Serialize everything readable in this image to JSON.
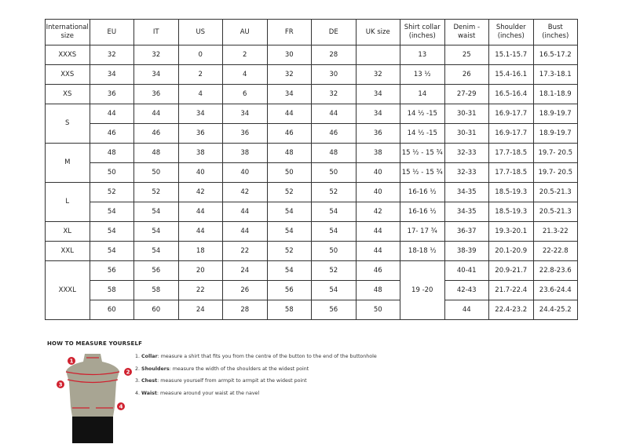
{
  "table": {
    "headers": [
      "International size",
      "EU",
      "IT",
      "US",
      "AU",
      "FR",
      "DE",
      "UK size",
      "Shirt collar (inches)",
      "Denim - waist",
      "Shoulder (inches)",
      "Bust (inches)"
    ],
    "rows": [
      [
        "XXXS",
        "32",
        "32",
        "0",
        "2",
        "30",
        "28",
        "",
        "13",
        "25",
        "15.1-15.7",
        "16.5-17.2"
      ],
      [
        "XXS",
        "34",
        "34",
        "2",
        "4",
        "32",
        "30",
        "32",
        "13 ½",
        "26",
        "15.4-16.1",
        "17.3-18.1"
      ],
      [
        "XS",
        "36",
        "36",
        "4",
        "6",
        "34",
        "32",
        "34",
        "14",
        "27-29",
        "16.5-16.4",
        "18.1-18.9"
      ],
      [
        "S",
        "44",
        "44",
        "34",
        "34",
        "44",
        "44",
        "34",
        "14 ½ -15",
        "30-31",
        "16.9-17.7",
        "18.9-19.7"
      ],
      [
        null,
        "46",
        "46",
        "36",
        "36",
        "46",
        "46",
        "36",
        "14 ½ -15",
        "30-31",
        "16.9-17.7",
        "18.9-19.7"
      ],
      [
        "M",
        "48",
        "48",
        "38",
        "38",
        "48",
        "48",
        "38",
        "15 ½ - 15 ¾",
        "32-33",
        "17.7-18.5",
        "19.7- 20.5"
      ],
      [
        null,
        "50",
        "50",
        "40",
        "40",
        "50",
        "50",
        "40",
        "15 ½ - 15 ¾",
        "32-33",
        "17.7-18.5",
        "19.7- 20.5"
      ],
      [
        "L",
        "52",
        "52",
        "42",
        "42",
        "52",
        "52",
        "40",
        "16-16 ½",
        "34-35",
        "18.5-19.3",
        "20.5-21.3"
      ],
      [
        null,
        "54",
        "54",
        "44",
        "44",
        "54",
        "54",
        "42",
        "16-16 ½",
        "34-35",
        "18.5-19.3",
        "20.5-21.3"
      ],
      [
        "XL",
        "54",
        "54",
        "44",
        "44",
        "54",
        "54",
        "44",
        "17- 17 ¾",
        "36-37",
        "19.3-20.1",
        "21.3-22"
      ],
      [
        "XXL",
        "54",
        "54",
        "18",
        "22",
        "52",
        "50",
        "44",
        "18-18 ½",
        "38-39",
        "20.1-20.9",
        "22-22.8"
      ],
      [
        "XXXL",
        "56",
        "56",
        "20",
        "24",
        "54",
        "52",
        "46",
        "19 -20",
        "40-41",
        "20.9-21.7",
        "22.8-23.6"
      ],
      [
        null,
        "58",
        "58",
        "22",
        "26",
        "56",
        "54",
        "48",
        null,
        "42-43",
        "21.7-22.4",
        "23.6-24.4"
      ],
      [
        null,
        "60",
        "60",
        "24",
        "28",
        "58",
        "56",
        "50",
        null,
        "44",
        "22.4-23.2",
        "24.4-25.2"
      ]
    ]
  },
  "measure": {
    "title": "HOW TO MEASURE YOURSELF",
    "steps": [
      {
        "num": "1.",
        "term": "Collar",
        "text": ": measure a shirt that fits you from the centre of the button to the end of the buttonhole"
      },
      {
        "num": "2.",
        "term": "Shoulders",
        "text": ": measure the width of the shoulders at the widest point"
      },
      {
        "num": "3.",
        "term": "Chest",
        "text": ": measure yourself from armpit to armpit at the widest point"
      },
      {
        "num": "4.",
        "term": "Waist",
        "text": ": measure around your waist at the navel"
      }
    ],
    "markers": [
      "1",
      "2",
      "3",
      "4"
    ],
    "colors": {
      "torso": "#a8a593",
      "marker": "#d0202e",
      "pants": "#111111"
    }
  }
}
